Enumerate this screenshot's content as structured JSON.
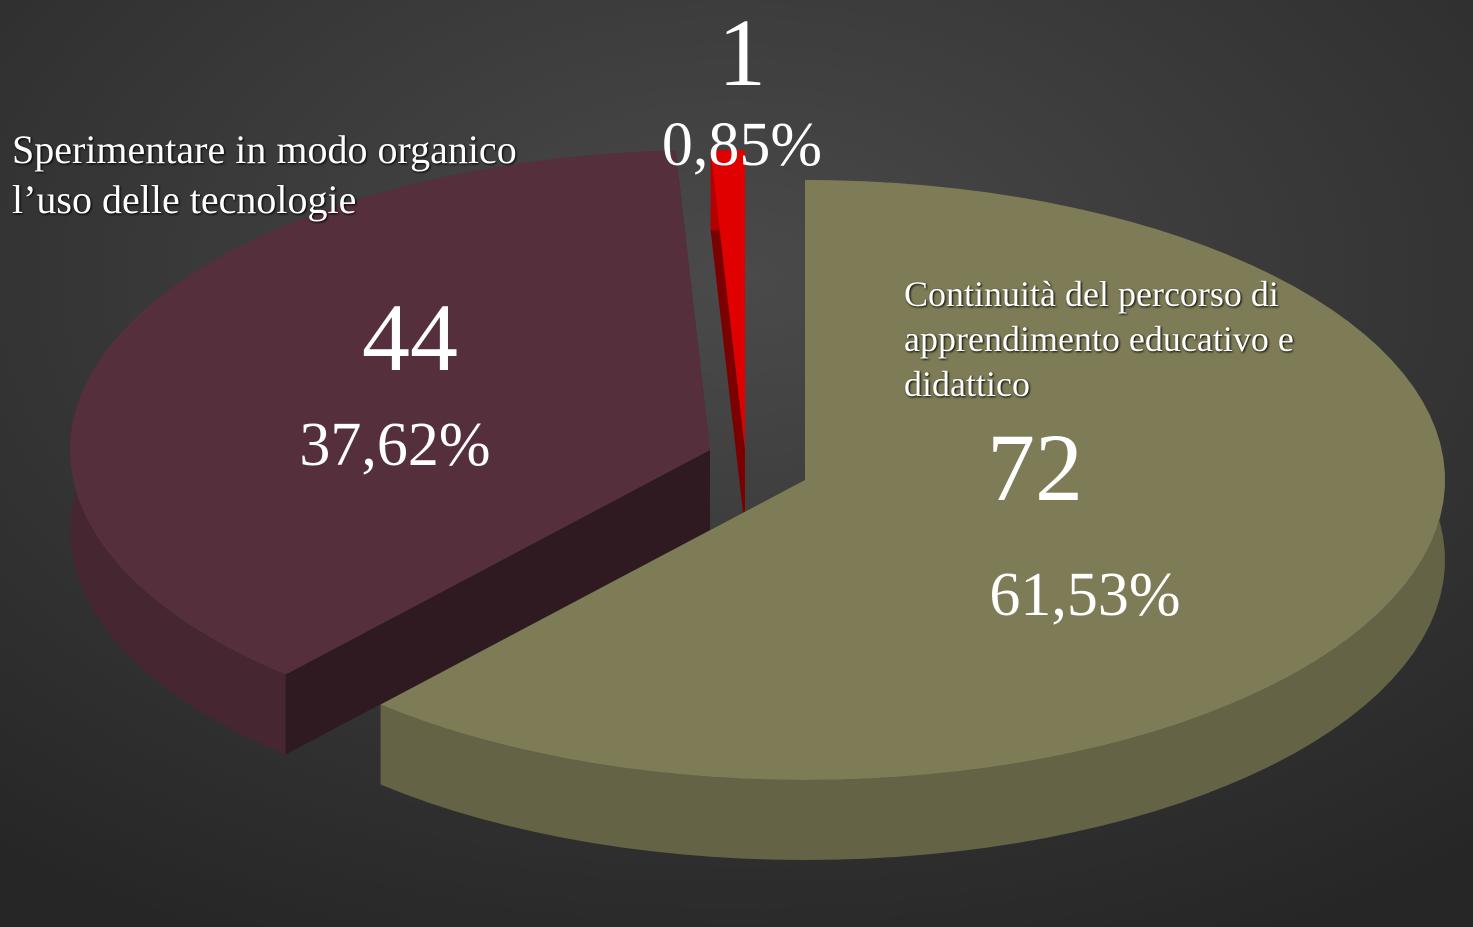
{
  "chart_data": {
    "type": "pie3d",
    "categories": [
      "Continuità del percorso di apprendimento educativo e didattico",
      "Sperimentare in modo organico l’uso delle tecnologie",
      null
    ],
    "values": [
      72,
      44,
      1
    ],
    "percent_values": [
      61.53,
      37.62,
      0.85
    ],
    "percent_labels": [
      "61,53%",
      "37,62%",
      "0,85%"
    ],
    "colors": [
      "#7d7c56",
      "#562f3d",
      "#e00000"
    ]
  }
}
